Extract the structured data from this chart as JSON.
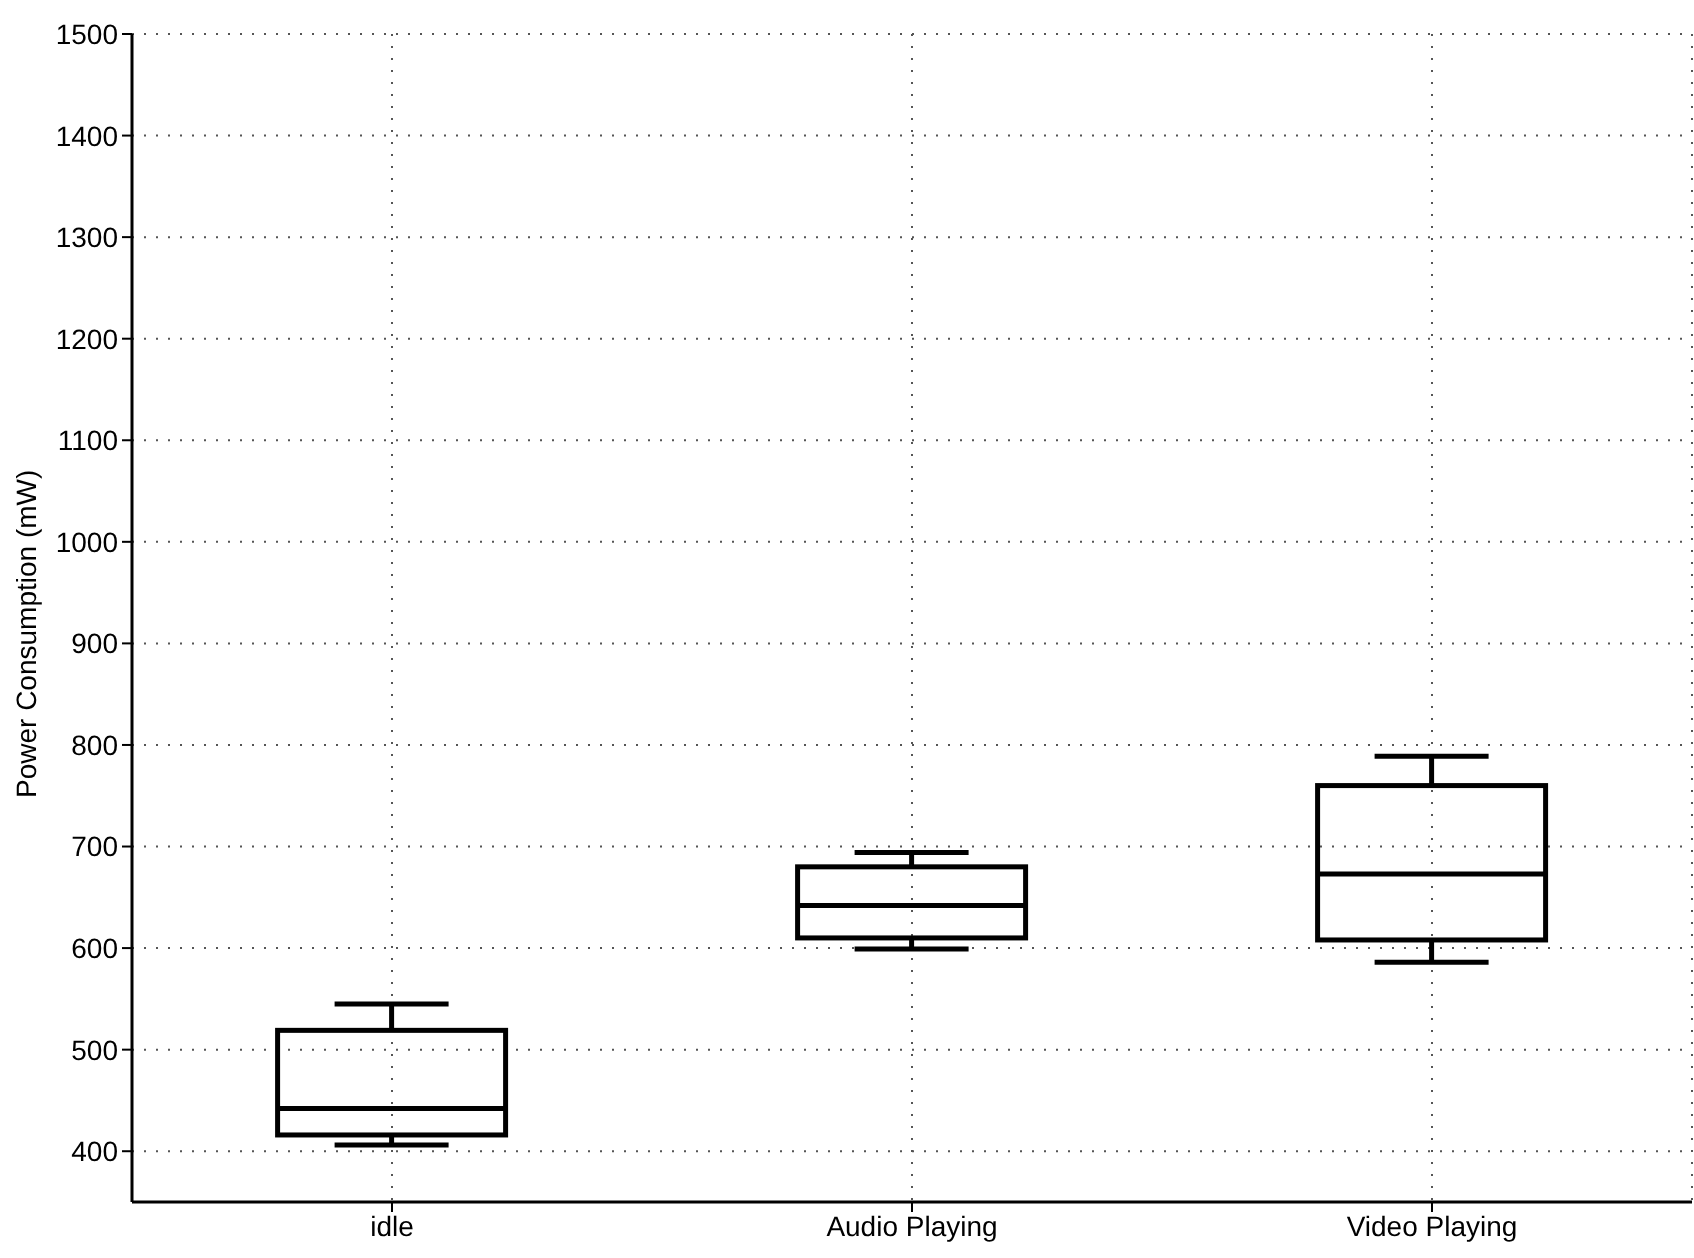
{
  "chart_data": {
    "type": "box",
    "ylabel": "Power Consumption (mW)",
    "categories": [
      "idle",
      "Audio Playing",
      "Video Playing"
    ],
    "boxes": [
      {
        "low": 406,
        "q1": 416,
        "median": 442,
        "q3": 519,
        "high": 545
      },
      {
        "low": 599,
        "q1": 610,
        "median": 642,
        "q3": 680,
        "high": 694
      },
      {
        "low": 586,
        "q1": 608,
        "median": 673,
        "q3": 760,
        "high": 789
      }
    ],
    "ylim": [
      350,
      1500
    ],
    "yticks": [
      400,
      500,
      600,
      700,
      800,
      900,
      1000,
      1100,
      1200,
      1300,
      1400,
      1500
    ],
    "grid": true
  }
}
